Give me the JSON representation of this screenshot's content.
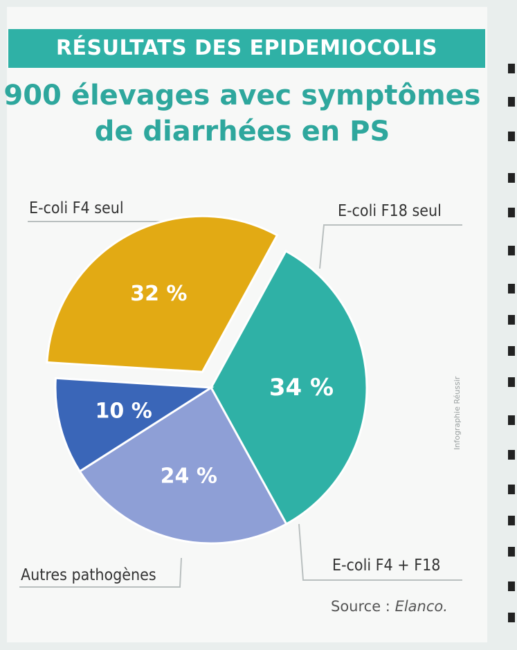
{
  "header": {
    "banner": "RÉSULTATS DES EPIDEMIOCOLIS",
    "title_line1": "900 élevages avec symptômes",
    "title_line2": "de diarrhées en PS"
  },
  "source": {
    "prefix": "Source : ",
    "name": "Elanco."
  },
  "credit": "Infographie Réussir",
  "chart_data": {
    "type": "pie",
    "title": "900 élevages avec symptômes de diarrhées en PS",
    "slices": [
      {
        "name": "E-coli F4 seul",
        "value": 34,
        "label": "34 %",
        "color": "#2fb1a6",
        "exploded": false
      },
      {
        "name": "E-coli F18 seul",
        "value": 24,
        "label": "24 %",
        "color": "#8e9fd6",
        "exploded": false
      },
      {
        "name": "E-coli F4 + F18",
        "value": 10,
        "label": "10 %",
        "color": "#3a66b8",
        "exploded": false
      },
      {
        "name": "Autres pathogènes",
        "value": 32,
        "label": "32 %",
        "color": "#e2aa14",
        "exploded": true
      }
    ]
  }
}
